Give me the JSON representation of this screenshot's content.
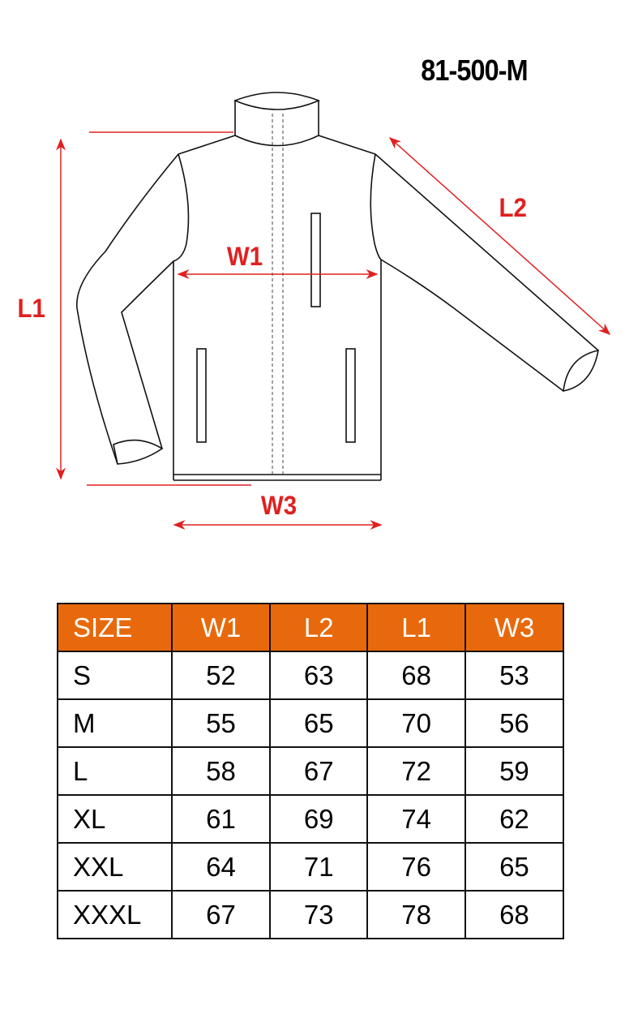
{
  "model": "81-500-M",
  "labels": {
    "l1": "L1",
    "l2": "L2",
    "w1": "W1",
    "w3": "W3"
  },
  "colors": {
    "annotation": "#e02020",
    "header": "#e8690b"
  },
  "table": {
    "headers": [
      "SIZE",
      "W1",
      "L2",
      "L1",
      "W3"
    ],
    "rows": [
      [
        "S",
        "52",
        "63",
        "68",
        "53"
      ],
      [
        "M",
        "55",
        "65",
        "70",
        "56"
      ],
      [
        "L",
        "58",
        "67",
        "72",
        "59"
      ],
      [
        "XL",
        "61",
        "69",
        "74",
        "62"
      ],
      [
        "XXL",
        "64",
        "71",
        "76",
        "65"
      ],
      [
        "XXXL",
        "67",
        "73",
        "78",
        "68"
      ]
    ]
  }
}
